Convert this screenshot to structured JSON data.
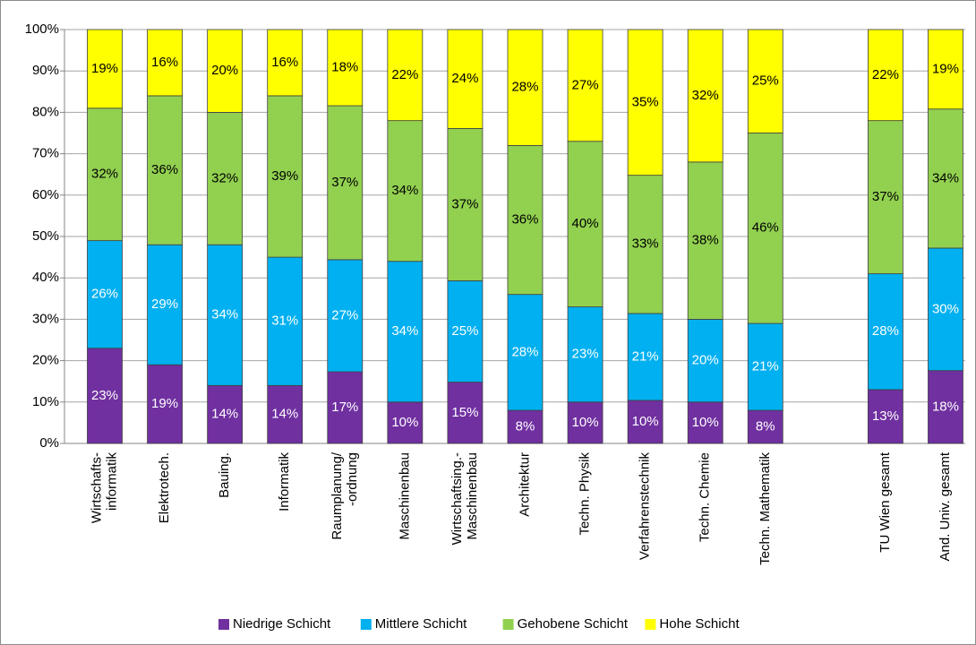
{
  "chart_data": {
    "type": "stacked_bar",
    "categories": [
      "Wirtschafts-\ninformatik",
      "Elektrotech.",
      "Bauing.",
      "Informatik",
      "Raumplanung/\n-ordnung",
      "Maschinenbau",
      "Wirtschaftsing.-\nMaschinenbau",
      "Architektur",
      "Techn. Physik",
      "Verfahrenstechnik",
      "Techn. Chemie",
      "Techn. Mathematik",
      null,
      "TU Wien gesamt",
      "And. Univ. gesamt"
    ],
    "series": [
      {
        "name": "Niedrige Schicht",
        "color": "#7030a0",
        "label_color": "#ffffff",
        "values": [
          23,
          19,
          14,
          14,
          17.3,
          10,
          14.8,
          8,
          10,
          10.4,
          10,
          8,
          null,
          13,
          17.6
        ],
        "value_labels": [
          "23%",
          "19%",
          "14%",
          "14%",
          "17%",
          "10%",
          "15%",
          "8%",
          "10%",
          "10%",
          "10%",
          "8%",
          null,
          "13%",
          "18%"
        ]
      },
      {
        "name": "Mittlere Schicht",
        "color": "#00b0f0",
        "label_color": "#ffffff",
        "values": [
          26,
          29,
          34,
          31,
          27.1,
          34,
          24.5,
          28,
          23,
          21.0,
          20,
          21,
          null,
          28,
          29.6
        ],
        "value_labels": [
          "26%",
          "29%",
          "34%",
          "31%",
          "27%",
          "34%",
          "25%",
          "28%",
          "23%",
          "21%",
          "20%",
          "21%",
          null,
          "28%",
          "30%"
        ]
      },
      {
        "name": "Gehobene Schicht",
        "color": "#92d050",
        "label_color": "#000000",
        "values": [
          32,
          36,
          32,
          39,
          37.2,
          34,
          36.8,
          36,
          40,
          33.4,
          38,
          46,
          null,
          37,
          33.6
        ],
        "value_labels": [
          "32%",
          "36%",
          "32%",
          "39%",
          "37%",
          "34%",
          "37%",
          "36%",
          "40%",
          "33%",
          "38%",
          "46%",
          null,
          "37%",
          "34%"
        ]
      },
      {
        "name": "Hohe Schicht",
        "color": "#ffff00",
        "label_color": "#000000",
        "values": [
          19,
          16,
          20,
          16,
          18.4,
          22,
          23.9,
          28,
          27,
          35.2,
          32,
          25,
          null,
          22,
          19.2
        ],
        "value_labels": [
          "19%",
          "16%",
          "20%",
          "16%",
          "18%",
          "22%",
          "24%",
          "28%",
          "27%",
          "35%",
          "32%",
          "25%",
          null,
          "22%",
          "19%"
        ]
      }
    ],
    "ylim": [
      0,
      100
    ],
    "yticks": [
      {
        "value": 0,
        "label": "0%"
      },
      {
        "value": 10,
        "label": "10%"
      },
      {
        "value": 20,
        "label": "20%"
      },
      {
        "value": 30,
        "label": "30%"
      },
      {
        "value": 40,
        "label": "40%"
      },
      {
        "value": 50,
        "label": "50%"
      },
      {
        "value": 60,
        "label": "60%"
      },
      {
        "value": 70,
        "label": "70%"
      },
      {
        "value": 80,
        "label": "80%"
      },
      {
        "value": 90,
        "label": "90%"
      },
      {
        "value": 100,
        "label": "100%"
      }
    ],
    "grid": true,
    "legend": "bottom"
  }
}
